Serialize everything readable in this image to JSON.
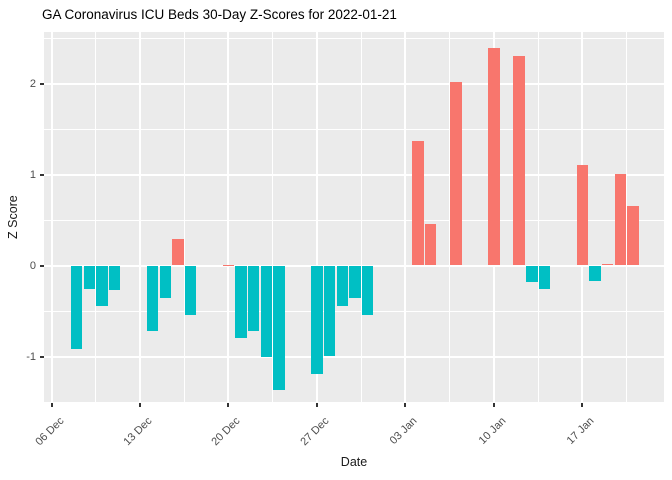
{
  "chart_data": {
    "type": "bar",
    "title": "GA Coronavirus ICU Beds 30-Day Z-Scores for 2022-01-21",
    "xlabel": "Date",
    "ylabel": "Z Score",
    "legend": "none",
    "grid": "major+minor white on grey panel",
    "panel_background": "#EBEBEB",
    "colors": {
      "positive": "#F8766D",
      "negative": "#00BFC4"
    },
    "ylim": [
      -1.52,
      2.57
    ],
    "y_major_ticks": [
      -1,
      0,
      1,
      2
    ],
    "y_minor_ticks": [
      -1.5,
      -0.5,
      0.5,
      1.5,
      2.5
    ],
    "x_ticks": [
      {
        "date": "2021-12-06",
        "label": "06 Dec"
      },
      {
        "date": "2021-12-13",
        "label": "13 Dec"
      },
      {
        "date": "2021-12-20",
        "label": "20 Dec"
      },
      {
        "date": "2021-12-27",
        "label": "27 Dec"
      },
      {
        "date": "2022-01-03",
        "label": "03 Jan"
      },
      {
        "date": "2022-01-10",
        "label": "10 Jan"
      },
      {
        "date": "2022-01-17",
        "label": "17 Jan"
      }
    ],
    "x_minor_offsets_days": [
      3.5,
      10.5,
      17.5,
      24.5,
      31.5,
      38.5,
      45.5
    ],
    "bars": [
      {
        "date": "2021-12-08",
        "value": -0.92
      },
      {
        "date": "2021-12-09",
        "value": -0.26
      },
      {
        "date": "2021-12-10",
        "value": -0.45
      },
      {
        "date": "2021-12-11",
        "value": -0.27
      },
      {
        "date": "2021-12-14",
        "value": -0.72
      },
      {
        "date": "2021-12-15",
        "value": -0.36
      },
      {
        "date": "2021-12-16",
        "value": 0.29
      },
      {
        "date": "2021-12-17",
        "value": -0.54
      },
      {
        "date": "2021-12-20",
        "value": 0.01
      },
      {
        "date": "2021-12-21",
        "value": -0.8
      },
      {
        "date": "2021-12-22",
        "value": -0.72
      },
      {
        "date": "2021-12-23",
        "value": -1.0
      },
      {
        "date": "2021-12-24",
        "value": -1.37
      },
      {
        "date": "2021-12-27",
        "value": -1.19
      },
      {
        "date": "2021-12-28",
        "value": -0.99
      },
      {
        "date": "2021-12-29",
        "value": -0.45
      },
      {
        "date": "2021-12-30",
        "value": -0.36
      },
      {
        "date": "2021-12-31",
        "value": -0.54
      },
      {
        "date": "2022-01-04",
        "value": 1.37
      },
      {
        "date": "2022-01-05",
        "value": 0.46
      },
      {
        "date": "2022-01-07",
        "value": 2.02
      },
      {
        "date": "2022-01-10",
        "value": 2.39
      },
      {
        "date": "2022-01-12",
        "value": 2.3
      },
      {
        "date": "2022-01-13",
        "value": -0.18
      },
      {
        "date": "2022-01-14",
        "value": -0.26
      },
      {
        "date": "2022-01-17",
        "value": 1.1
      },
      {
        "date": "2022-01-18",
        "value": -0.17
      },
      {
        "date": "2022-01-19",
        "value": 0.02
      },
      {
        "date": "2022-01-20",
        "value": 1.01
      },
      {
        "date": "2022-01-21",
        "value": 0.65
      }
    ]
  }
}
